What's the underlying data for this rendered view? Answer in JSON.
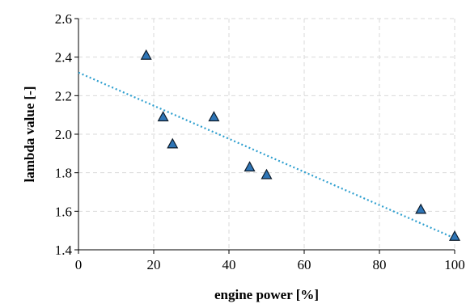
{
  "chart_data": {
    "type": "scatter",
    "title": "",
    "xlabel": "engine power [%]",
    "ylabel": "lambda value [-]",
    "xlim": [
      0,
      100
    ],
    "ylim": [
      1.4,
      2.6
    ],
    "x_ticks": [
      0,
      20,
      40,
      60,
      80,
      100
    ],
    "x_tick_labels": [
      "0",
      "20",
      "40",
      "60",
      "80",
      "100"
    ],
    "y_ticks": [
      1.4,
      1.6,
      1.8,
      2.0,
      2.2,
      2.4,
      2.6
    ],
    "y_tick_labels": [
      "1.4",
      "1.6",
      "1.8",
      "2.0",
      "2.2",
      "2.4",
      "2.6"
    ],
    "grid": true,
    "series": [
      {
        "marker": "triangle",
        "color": "#2e75b6",
        "points": [
          {
            "x": 18,
            "y": 2.41
          },
          {
            "x": 22.5,
            "y": 2.09
          },
          {
            "x": 25,
            "y": 1.95
          },
          {
            "x": 36,
            "y": 2.09
          },
          {
            "x": 45.5,
            "y": 1.83
          },
          {
            "x": 50,
            "y": 1.79
          },
          {
            "x": 91,
            "y": 1.61
          },
          {
            "x": 100,
            "y": 1.47
          }
        ]
      }
    ],
    "trendline": {
      "type": "linear",
      "color": "#2e9fcf",
      "start": {
        "x": 0,
        "y": 2.32
      },
      "end": {
        "x": 100,
        "y": 1.46
      }
    }
  }
}
